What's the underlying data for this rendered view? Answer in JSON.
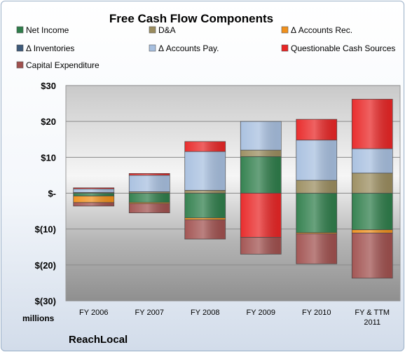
{
  "chart_data": {
    "type": "bar",
    "stacked": true,
    "title": "Free Cash Flow Components",
    "categories": [
      "FY 2006",
      "FY 2007",
      "FY 2008",
      "FY 2009",
      "FY 2010",
      "FY & TTM 2011"
    ],
    "y_ticks": [
      "$30",
      "$20",
      "$10",
      "$-",
      "$(10)",
      "$(20)",
      "$(30)"
    ],
    "ylim": [
      -30,
      30
    ],
    "ylabel": "millions",
    "grid": true,
    "legend_position": "top",
    "series": [
      {
        "name": "Net Income",
        "color": "#2e7d4a",
        "values": [
          -0.8,
          -2.6,
          -6.9,
          10.2,
          -11.0,
          -10.2
        ]
      },
      {
        "name": "D&A",
        "color": "#9a8c5e",
        "values": [
          0.2,
          0.4,
          0.8,
          1.8,
          3.6,
          5.6
        ]
      },
      {
        "name": "Δ Accounts Rec.",
        "color": "#f0901c",
        "values": [
          -1.8,
          -0.3,
          -0.5,
          0.0,
          -0.3,
          -0.9
        ]
      },
      {
        "name": "Δ Inventories",
        "color": "#3d5a7a",
        "values": [
          0.0,
          0.0,
          0.0,
          0.0,
          0.0,
          0.0
        ]
      },
      {
        "name": "Δ Accounts Pay.",
        "color": "#a7bfdf",
        "values": [
          1.0,
          4.6,
          10.8,
          8.0,
          11.2,
          6.8
        ]
      },
      {
        "name": "Questionable Cash Sources",
        "color": "#e82525",
        "values": [
          0.3,
          0.5,
          2.8,
          -12.3,
          5.8,
          13.8
        ]
      },
      {
        "name": "Capital Expenditure",
        "color": "#a0504e",
        "values": [
          -1.0,
          -2.6,
          -5.4,
          -4.7,
          -8.4,
          -12.6
        ]
      }
    ]
  },
  "footer": {
    "brand": "ReachLocal"
  }
}
